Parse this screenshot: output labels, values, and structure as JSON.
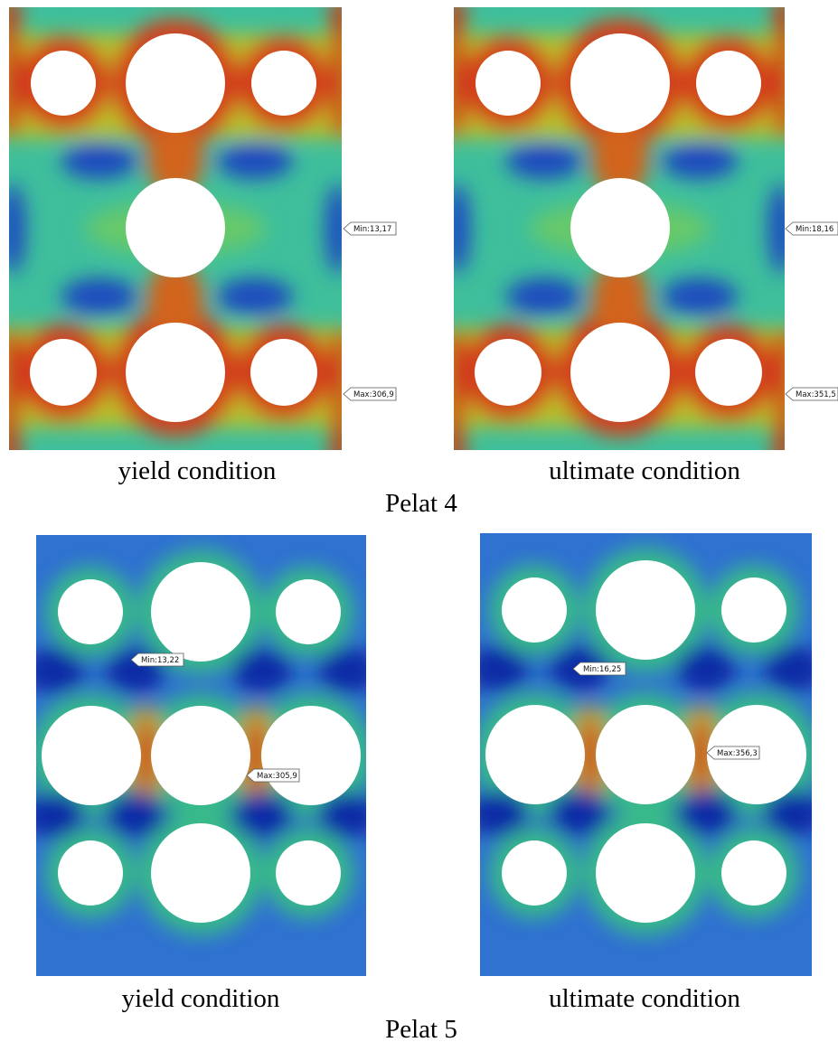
{
  "figures": [
    {
      "label": "Pelat 4",
      "panels": [
        {
          "caption": "yield condition",
          "min_label": "Min:13,17",
          "max_label": "Max:306,9"
        },
        {
          "caption": "ultimate condition",
          "min_label": "Min:18,16",
          "max_label": "Max:351,5"
        }
      ]
    },
    {
      "label": "Pelat 5",
      "panels": [
        {
          "caption": "yield condition",
          "min_label": "Min:13,22",
          "max_label": "Max:305,9"
        },
        {
          "caption": "ultimate condition",
          "min_label": "Min:16,25",
          "max_label": "Max:356,3"
        }
      ]
    }
  ]
}
